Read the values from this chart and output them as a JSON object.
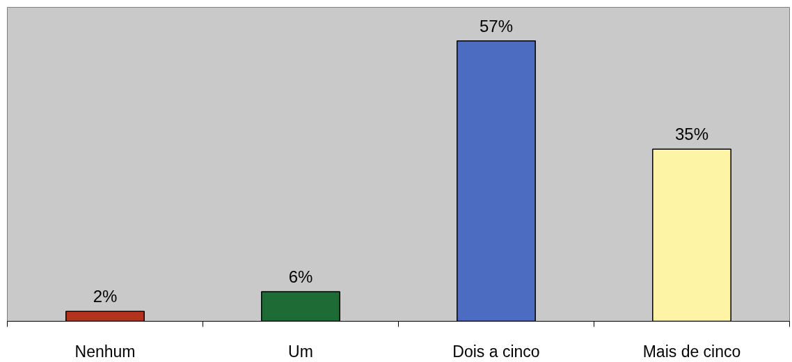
{
  "chart_data": {
    "type": "bar",
    "categories": [
      "Nenhum",
      "Um",
      "Dois a cinco",
      "Mais de cinco"
    ],
    "values": [
      2,
      6,
      57,
      35
    ],
    "value_labels": [
      "2%",
      "6%",
      "57%",
      "35%"
    ],
    "colors": [
      "#b5321e",
      "#1f6b36",
      "#4b6cc1",
      "#fdf4a6"
    ]
  }
}
